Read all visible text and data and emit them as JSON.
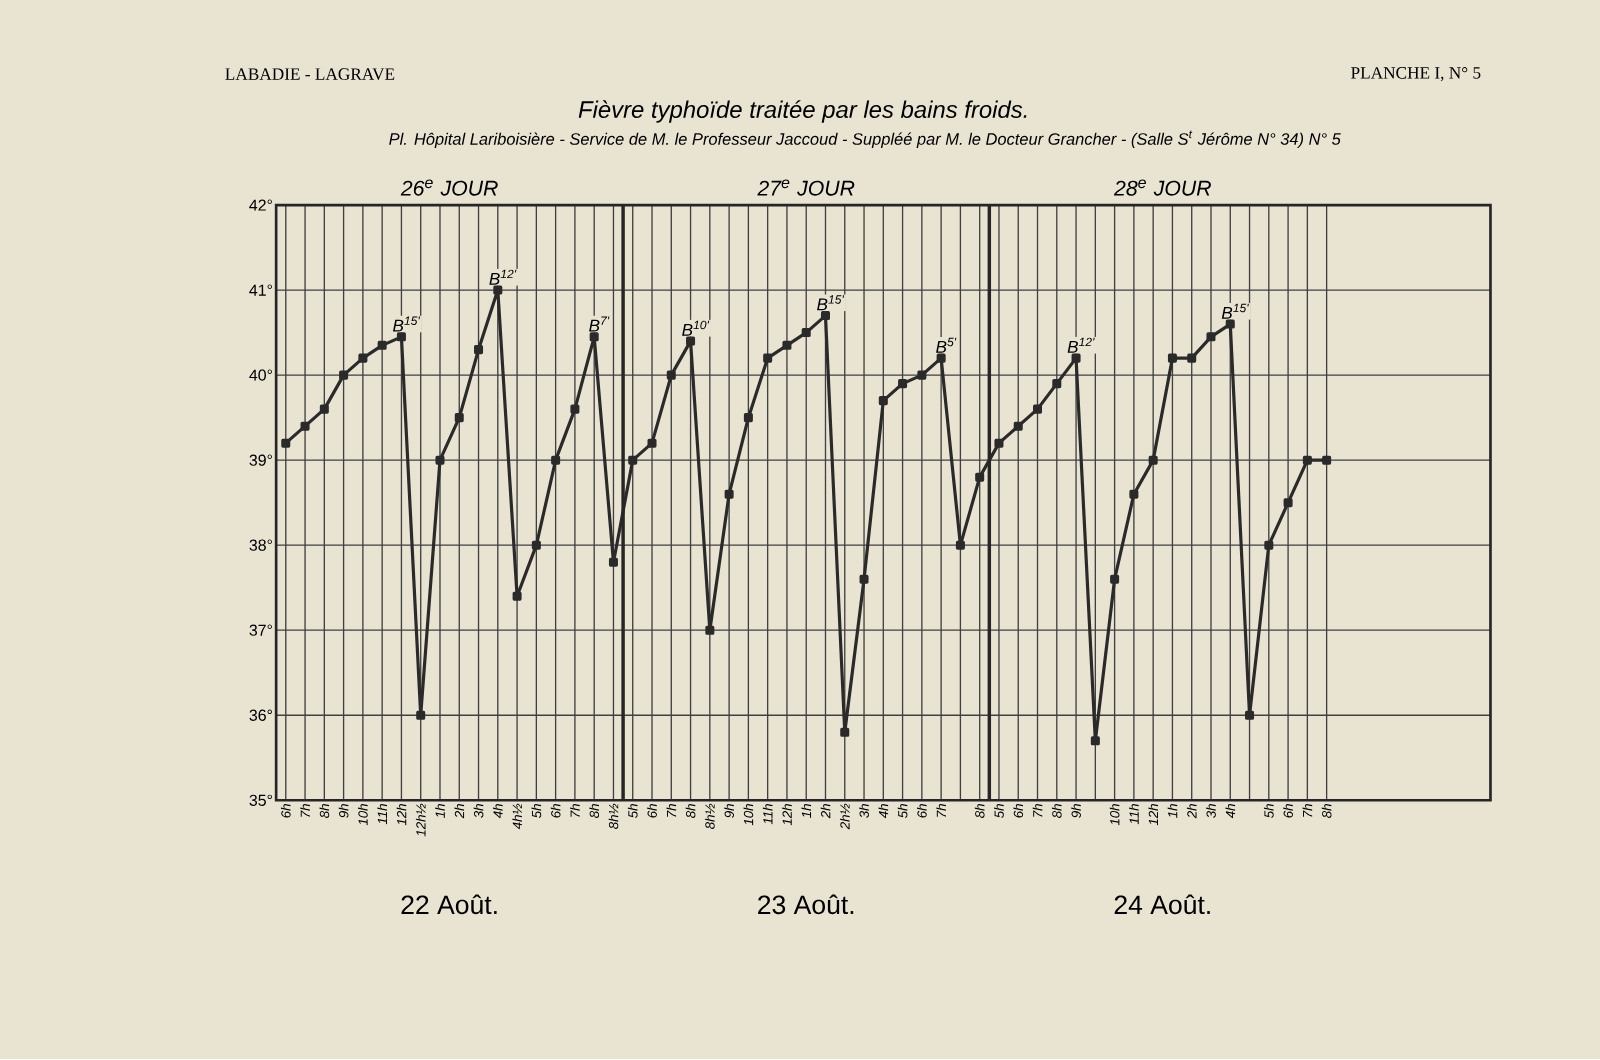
{
  "chart_data": {
    "type": "line",
    "title": "Fièvre typhoïde traitée par les bains froids.",
    "subtitle": "Pl. Hôpital Lariboisière - Service de M. le Professeur Jaccoud - Suppléé par M. le Docteur Grancher - (Salle S$^{t}$ Jérôme N° 34) N° 5",
    "annotations": [
      "LABADIE - LAGRAVE",
      "PLANCHE I, N° 5",
      "26$^{e}$ JOUR",
      "27$^{e}$ JOUR",
      "28$^{e}$ JOUR",
      "22 Août.",
      "23 Août.",
      "24 Août.",
      "B$^{15'}$",
      "B$^{12'}$",
      "B$^{7'}$",
      "B$^{10'}$",
      "B$^{15'}$",
      "B$^{5'}$",
      "B$^{12'}$",
      "B$^{15'}$"
    ],
    "categories": [
      "6h",
      "7h",
      "8h",
      "9h",
      "10h",
      "11h",
      "12h",
      "12h½",
      "1h",
      "2h",
      "3h",
      "4h",
      "4h½",
      "5h",
      "6h",
      "7h",
      "8h",
      "8h½",
      "5h",
      "6h",
      "7h",
      "8h",
      "8h½",
      "9h",
      "10h",
      "11h",
      "12h",
      "1h",
      "2h",
      "2h½",
      "3h",
      "4h",
      "5h",
      "6h",
      "7h",
      null,
      "8h",
      "5h",
      "6h",
      "7h",
      "8h",
      "9h",
      null,
      "10h",
      "11h",
      "12h",
      "1h",
      "2h",
      "3h",
      "4h",
      null,
      "5h",
      "6h",
      "7h",
      "8h"
    ],
    "series": [
      {
        "color": "#2a2a2a",
        "values": [
          39.2,
          39.4,
          39.6,
          40.0,
          40.2,
          40.35,
          40.45,
          36.0,
          39.0,
          39.5,
          40.3,
          41.0,
          37.4,
          38.0,
          39.0,
          39.6,
          40.45,
          37.8,
          39.0,
          39.2,
          40.0,
          40.4,
          37.0,
          38.6,
          39.5,
          40.2,
          40.35,
          40.5,
          40.7,
          35.8,
          37.6,
          39.7,
          39.9,
          40.0,
          40.2,
          38.0,
          38.8,
          39.2,
          39.4,
          39.6,
          39.9,
          40.2,
          35.7,
          37.6,
          38.6,
          39.0,
          40.2,
          40.2,
          40.45,
          40.6,
          36.0,
          38.0,
          38.5,
          39.0,
          39.0
        ]
      }
    ],
    "ylim": [
      35,
      42
    ],
    "yticks": [
      {
        "value": 35,
        "label": "35°"
      },
      {
        "value": 36,
        "label": "36°"
      },
      {
        "value": 37,
        "label": "37°"
      },
      {
        "value": 38,
        "label": "38°"
      },
      {
        "value": 39,
        "label": "39°"
      },
      {
        "value": 40,
        "label": "40°"
      },
      {
        "value": 41,
        "label": "41°"
      },
      {
        "value": 42,
        "label": "42°"
      }
    ],
    "grid": true,
    "marker": "square",
    "line_style": "solid"
  }
}
